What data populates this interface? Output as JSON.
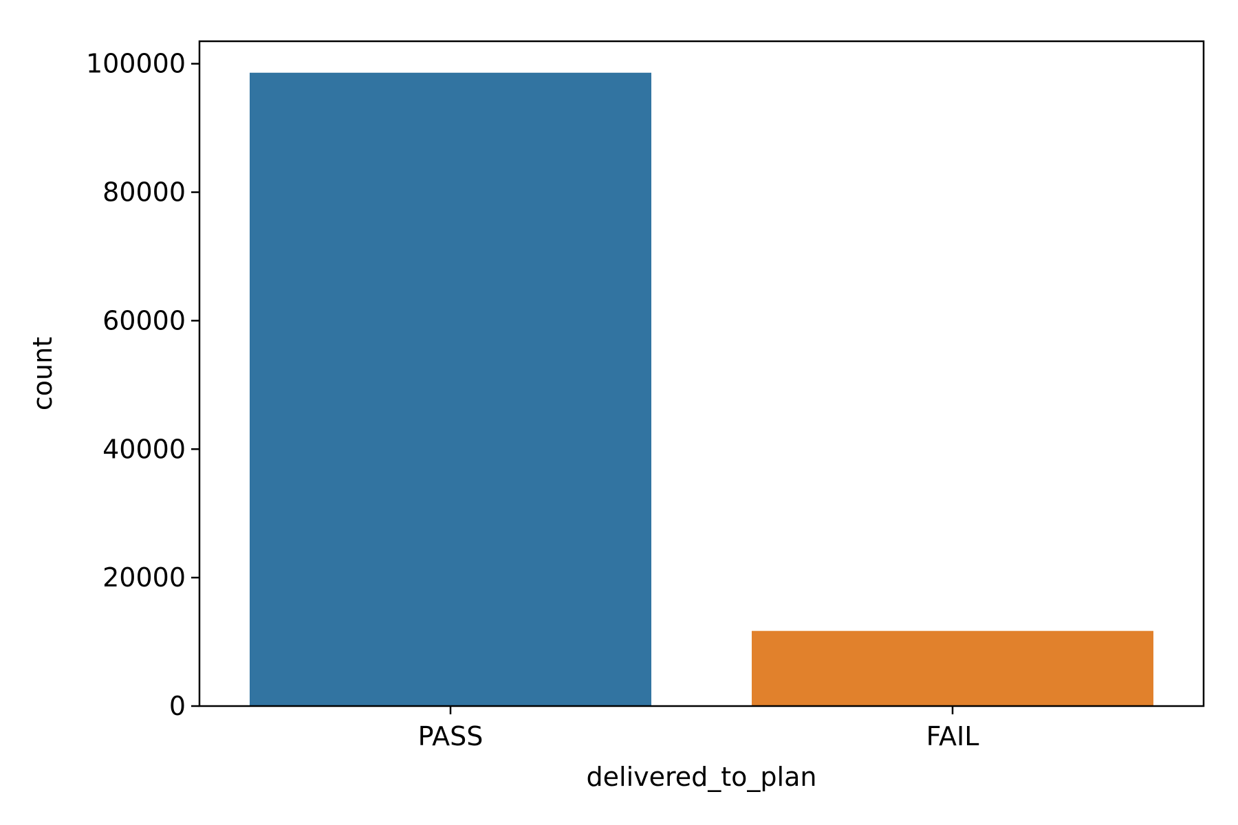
{
  "chart_data": {
    "type": "bar",
    "title": "",
    "xlabel": "delivered_to_plan",
    "ylabel": "count",
    "categories": [
      "PASS",
      "FAIL"
    ],
    "values": [
      98600,
      11700
    ],
    "colors": [
      "#3274a1",
      "#e1812c"
    ],
    "ylim": [
      0,
      103500
    ],
    "yticks": [
      0,
      20000,
      40000,
      60000,
      80000,
      100000
    ],
    "ytick_labels": [
      "0",
      "20000",
      "40000",
      "60000",
      "80000",
      "100000"
    ],
    "grid": false,
    "legend": "none"
  }
}
